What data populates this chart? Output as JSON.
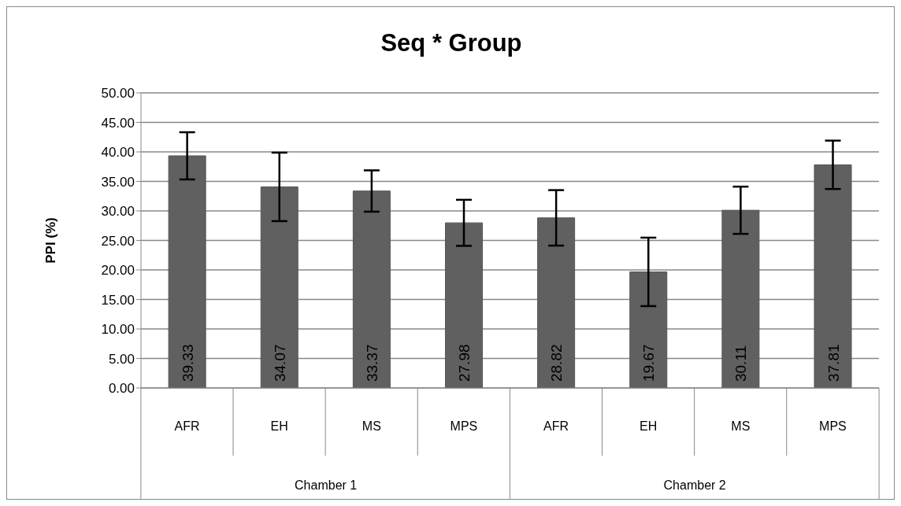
{
  "chart_data": {
    "type": "bar",
    "title": "Seq * Group",
    "ylabel": "PPI (%)",
    "categories": [
      "AFR",
      "EH",
      "MS",
      "MPS",
      "AFR",
      "EH",
      "MS",
      "MPS"
    ],
    "values": [
      39.33,
      34.07,
      33.37,
      27.98,
      28.82,
      19.67,
      30.11,
      37.81
    ],
    "errors": [
      4.0,
      5.8,
      3.5,
      3.9,
      4.7,
      5.8,
      4.0,
      4.1
    ],
    "color": "#606060",
    "data_labels": true,
    "annotations": [
      "Chamber 1",
      "Chamber 2"
    ],
    "ylim": [
      0,
      50
    ],
    "yticks": [
      {
        "value": 0,
        "label": "0.00"
      },
      {
        "value": 5,
        "label": "5.00"
      },
      {
        "value": 10,
        "label": "10.00"
      },
      {
        "value": 15,
        "label": "15.00"
      },
      {
        "value": 20,
        "label": "20.00"
      },
      {
        "value": 25,
        "label": "25.00"
      },
      {
        "value": 30,
        "label": "30.00"
      },
      {
        "value": 35,
        "label": "35.00"
      },
      {
        "value": 40,
        "label": "40.00"
      },
      {
        "value": 45,
        "label": "45.00"
      },
      {
        "value": 50,
        "label": "50.00"
      }
    ],
    "grid": "y"
  }
}
